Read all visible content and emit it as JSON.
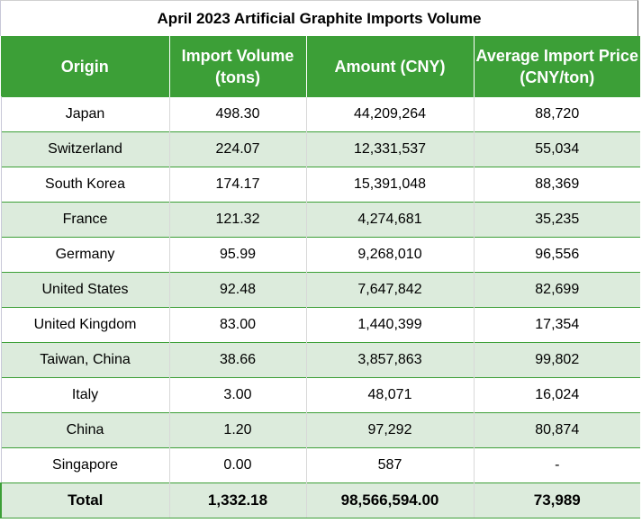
{
  "title": "April 2023 Artificial Graphite Imports Volume",
  "headers": [
    "Origin",
    "Import Volume (tons)",
    "Amount (CNY)",
    "Average Import Price (CNY/ton)"
  ],
  "rows": [
    [
      "Japan",
      "498.30",
      "44,209,264",
      "88,720"
    ],
    [
      "Switzerland",
      "224.07",
      "12,331,537",
      "55,034"
    ],
    [
      "South Korea",
      "174.17",
      "15,391,048",
      "88,369"
    ],
    [
      "France",
      "121.32",
      "4,274,681",
      "35,235"
    ],
    [
      "Germany",
      "95.99",
      "9,268,010",
      "96,556"
    ],
    [
      "United States",
      "92.48",
      "7,647,842",
      "82,699"
    ],
    [
      "United Kingdom",
      "83.00",
      "1,440,399",
      "17,354"
    ],
    [
      "Taiwan, China",
      "38.66",
      "3,857,863",
      "99,802"
    ],
    [
      "Italy",
      "3.00",
      "48,071",
      "16,024"
    ],
    [
      "China",
      "1.20",
      "97,292",
      "80,874"
    ],
    [
      "Singapore",
      "0.00",
      "587",
      "-"
    ]
  ],
  "total": [
    "Total",
    "1,332.18",
    "98,566,594.00",
    "73,989"
  ],
  "colors": {
    "header": "#3c9f37",
    "alt_row": "#dcebdc"
  }
}
